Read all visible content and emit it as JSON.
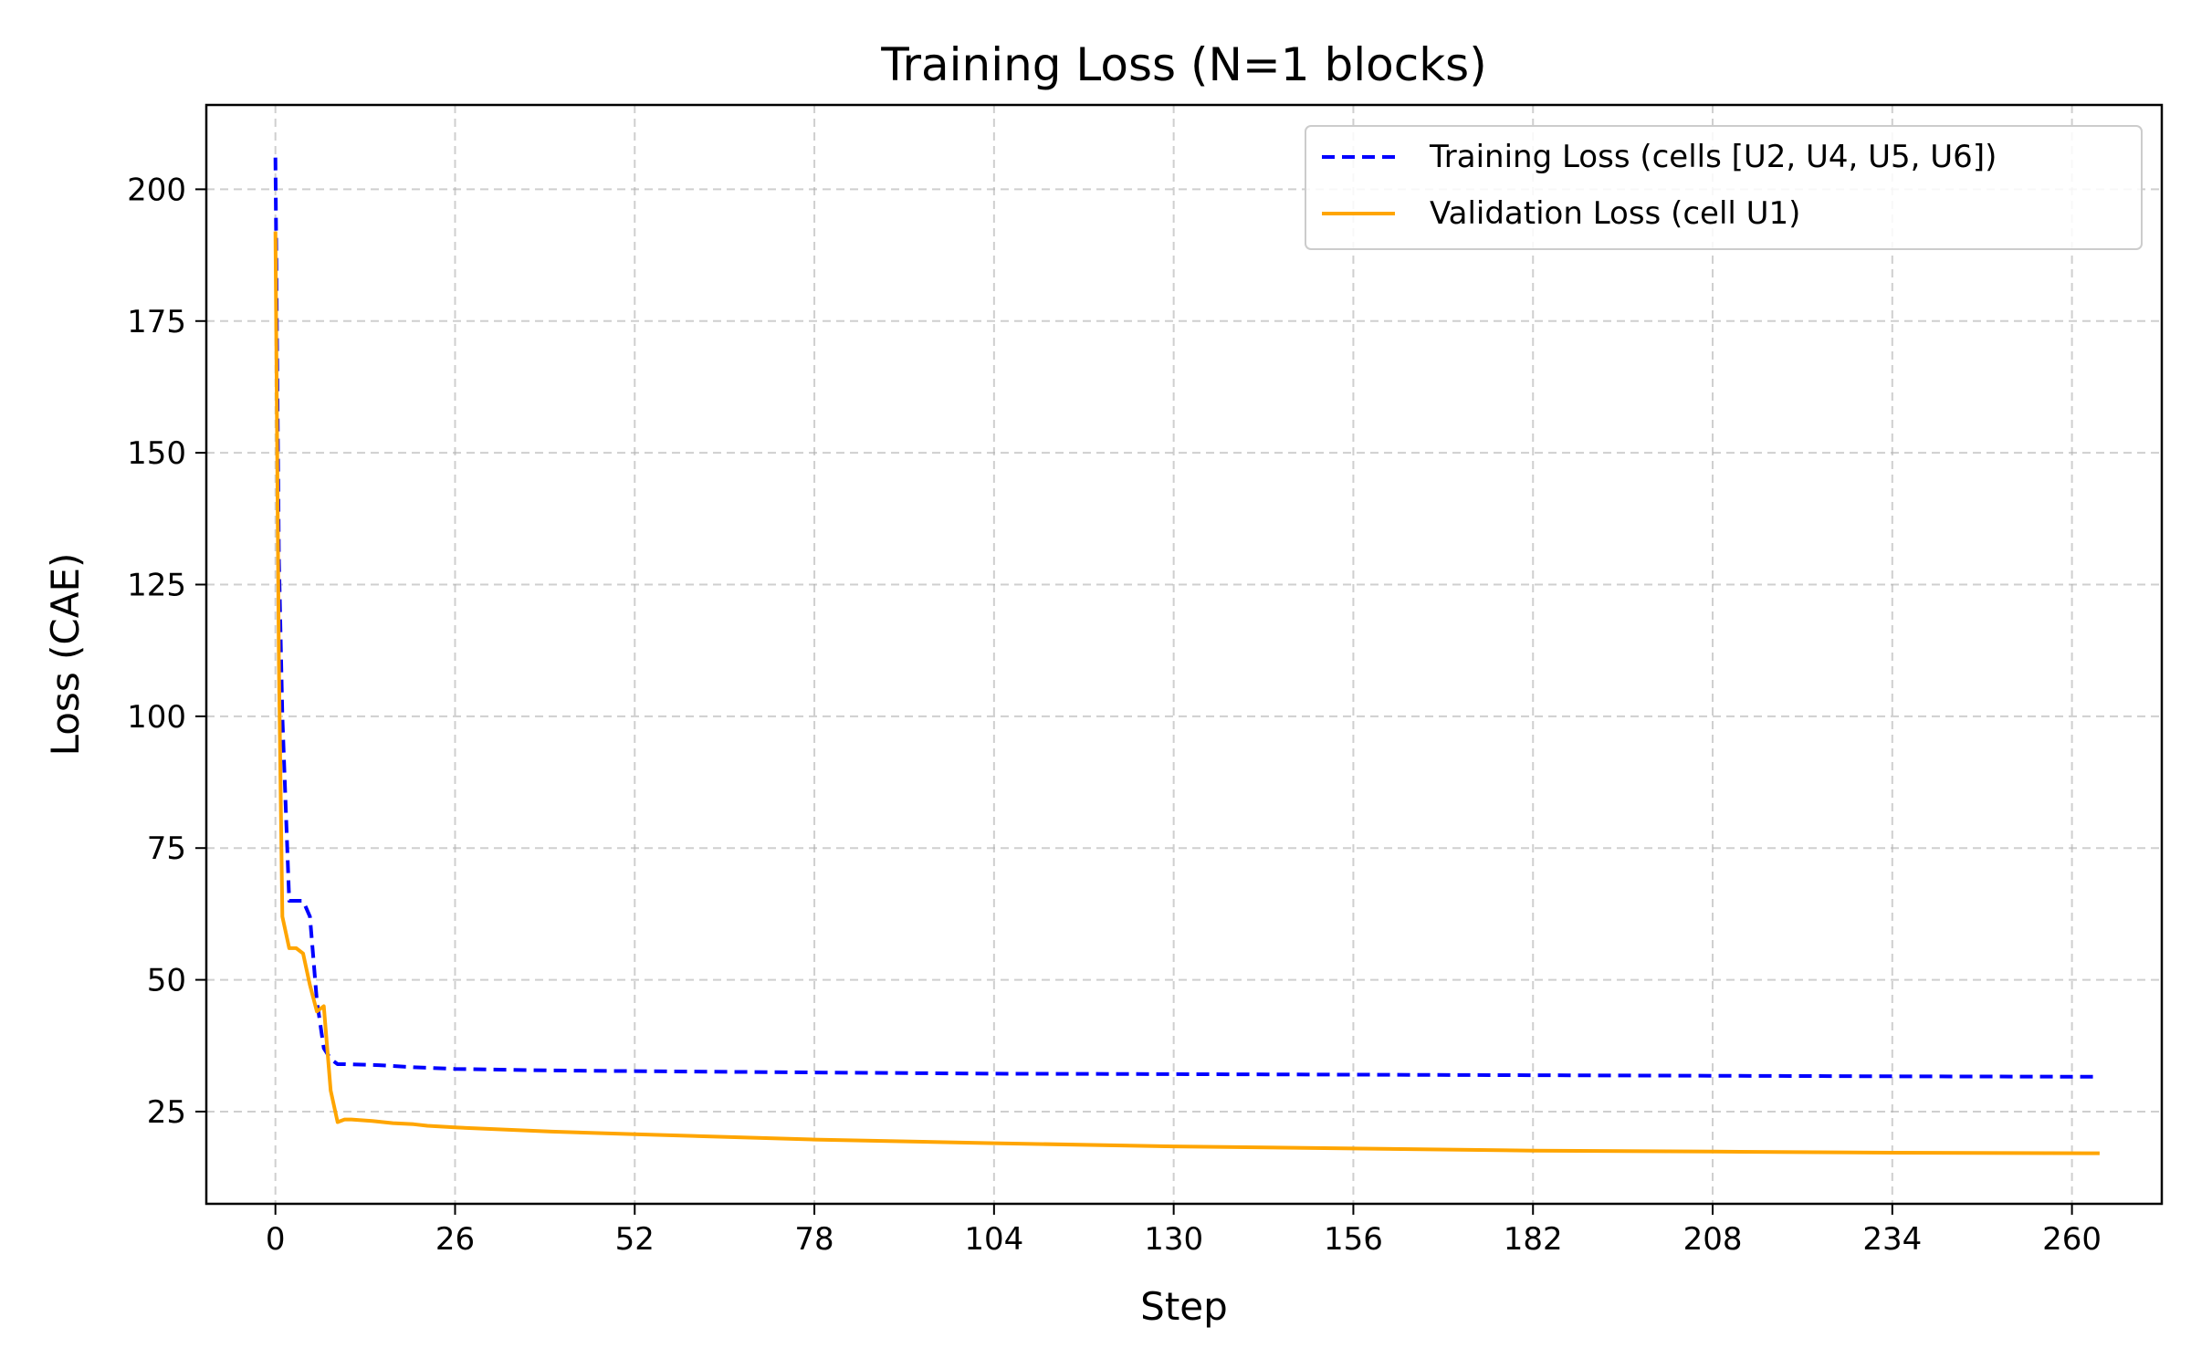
{
  "chart_data": {
    "type": "line",
    "title": "Training Loss (N=1 blocks)",
    "xlabel": "Step",
    "ylabel": "Loss (CAE)",
    "xlim": [
      -10,
      273
    ],
    "ylim": [
      7.5,
      216
    ],
    "xticks": [
      0,
      26,
      52,
      78,
      104,
      130,
      156,
      182,
      208,
      234,
      260
    ],
    "yticks": [
      25,
      50,
      75,
      100,
      125,
      150,
      175,
      200
    ],
    "grid": true,
    "legend_position": "top-right",
    "series": [
      {
        "name": "Training Loss (cells [U2, U4, U5, U6])",
        "color": "#0000ff",
        "style": "dashed",
        "x": [
          0,
          0.5,
          1,
          2,
          3,
          4,
          5,
          6,
          7,
          8,
          9,
          10,
          15,
          20,
          26,
          40,
          60,
          80,
          104,
          130,
          156,
          182,
          208,
          234,
          264
        ],
        "y": [
          206,
          130,
          100,
          65,
          65,
          65,
          62,
          46,
          37,
          35,
          34,
          34,
          33.8,
          33.4,
          33.1,
          32.8,
          32.6,
          32.4,
          32.2,
          32.1,
          32.0,
          31.9,
          31.8,
          31.7,
          31.6
        ]
      },
      {
        "name": "Validation Loss (cell U1)",
        "color": "#ffa500",
        "style": "solid",
        "x": [
          0,
          0.5,
          1,
          2,
          3,
          4,
          5,
          6,
          7,
          8,
          9,
          10,
          11,
          14,
          17,
          20,
          22,
          26,
          40,
          52,
          78,
          104,
          130,
          156,
          182,
          208,
          234,
          264
        ],
        "y": [
          192,
          110,
          62,
          56,
          56,
          55,
          49,
          44,
          45,
          29,
          23,
          23.5,
          23.5,
          23.2,
          22.8,
          22.6,
          22.3,
          22.0,
          21.2,
          20.7,
          19.7,
          19.0,
          18.4,
          18.0,
          17.6,
          17.4,
          17.2,
          17.1
        ]
      }
    ]
  }
}
